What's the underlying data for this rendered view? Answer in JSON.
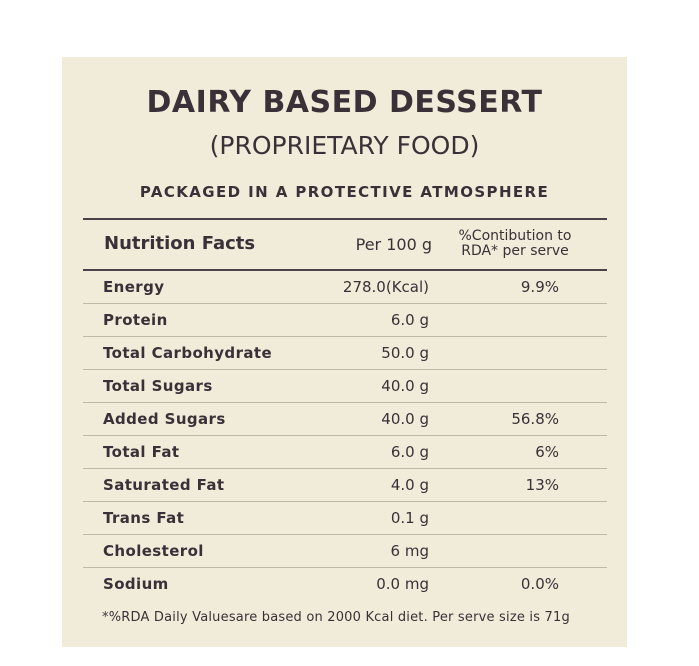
{
  "label": {
    "title": "DAIRY BASED DESSERT",
    "subtitle": "(PROPRIETARY FOOD)",
    "tagline": "PACKAGED IN A PROTECTIVE ATMOSPHERE"
  },
  "table": {
    "header": {
      "name": "Nutrition Facts",
      "per": "Per 100 g",
      "rda_line1": "%Contibution to",
      "rda_line2": "RDA* per serve"
    },
    "rows": [
      {
        "name": "Energy",
        "value": "278.0(Kcal)",
        "rda": "9.9%"
      },
      {
        "name": "Protein",
        "value": "6.0 g",
        "rda": ""
      },
      {
        "name": "Total Carbohydrate",
        "value": "50.0 g",
        "rda": ""
      },
      {
        "name": "Total Sugars",
        "value": "40.0 g",
        "rda": ""
      },
      {
        "name": "Added Sugars",
        "value": "40.0 g",
        "rda": "56.8%"
      },
      {
        "name": "Total Fat",
        "value": "6.0 g",
        "rda": "6%"
      },
      {
        "name": "Saturated Fat",
        "value": "4.0 g",
        "rda": "13%"
      },
      {
        "name": "Trans Fat",
        "value": "0.1 g",
        "rda": ""
      },
      {
        "name": "Cholesterol",
        "value": "6 mg",
        "rda": ""
      },
      {
        "name": "Sodium",
        "value": "0.0 mg",
        "rda": "0.0%"
      }
    ]
  },
  "footnote": "*%RDA Daily Valuesare based on 2000 Kcal diet. Per serve size is 71g",
  "colors": {
    "panel": "#f1ecd9",
    "text": "#3a3038",
    "rule": "#4a4248"
  }
}
